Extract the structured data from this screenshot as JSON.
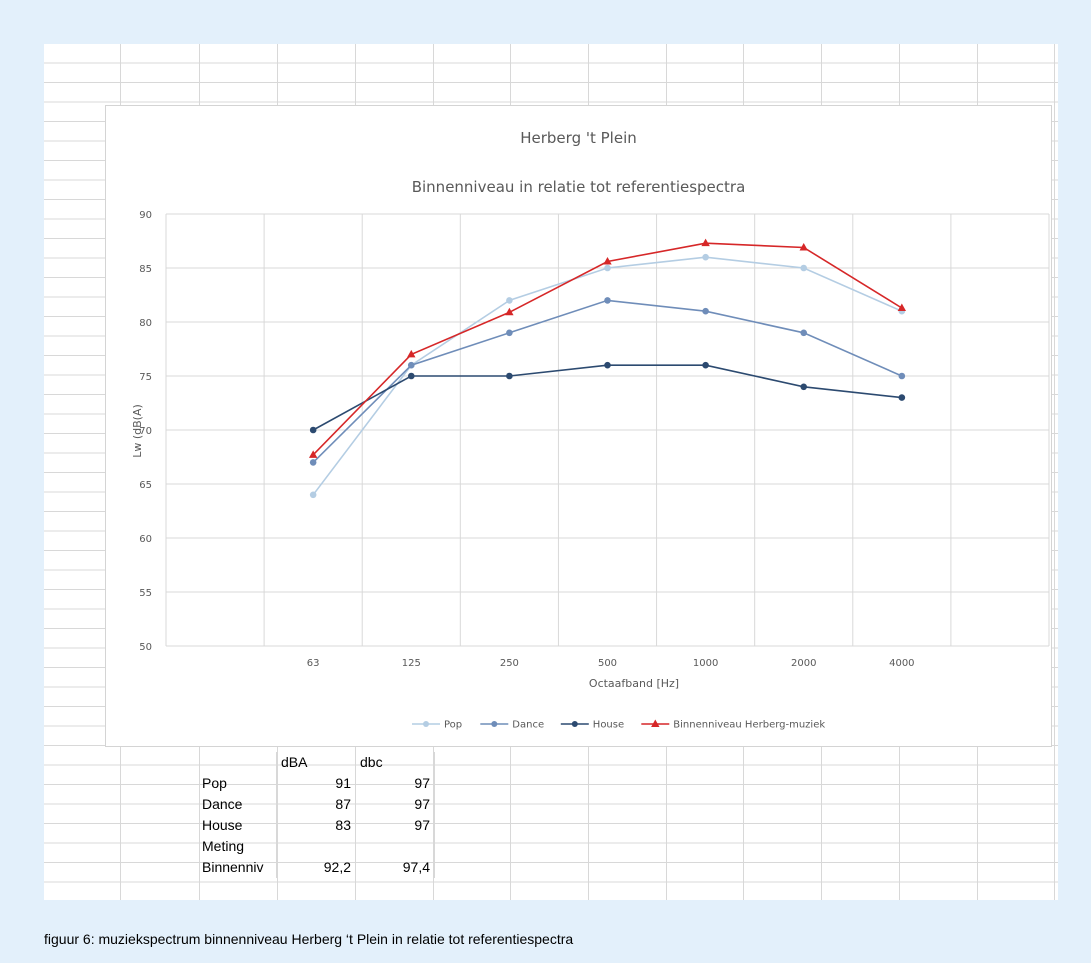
{
  "chart_data": {
    "type": "line",
    "title": "Herberg 't Plein",
    "subtitle": "Binnenniveau in relatie tot referentiespectra",
    "xlabel": "Octaafband [Hz]",
    "ylabel": "Lw (dB(A)",
    "categories": [
      "63",
      "125",
      "250",
      "500",
      "1000",
      "2000",
      "4000"
    ],
    "ylim": [
      50,
      90
    ],
    "yticks": [
      "50",
      "55",
      "60",
      "65",
      "70",
      "75",
      "80",
      "85",
      "90"
    ],
    "grid": true,
    "legend_position": "bottom",
    "series": [
      {
        "name": "Pop",
        "values": [
          64,
          76,
          82,
          85,
          86,
          85,
          81
        ],
        "color": "#b4cde3",
        "marker": "circle"
      },
      {
        "name": "Dance",
        "values": [
          67,
          76,
          79,
          82,
          81,
          79,
          75
        ],
        "color": "#6f8db9",
        "marker": "circle"
      },
      {
        "name": "House",
        "values": [
          70,
          75,
          75,
          76,
          76,
          74,
          73
        ],
        "color": "#2c4a70",
        "marker": "circle"
      },
      {
        "name": "Binnenniveau Herberg-muziek",
        "values": [
          67.7,
          77,
          80.9,
          85.6,
          87.3,
          86.9,
          81.3
        ],
        "color": "#d62728",
        "marker": "triangle"
      }
    ]
  },
  "table": {
    "headers": [
      "",
      "dBA",
      "dbc"
    ],
    "rows": [
      [
        "Pop",
        "91",
        "97"
      ],
      [
        "Dance",
        "87",
        "97"
      ],
      [
        "House",
        "83",
        "97"
      ],
      [
        "Meting",
        "",
        ""
      ],
      [
        "Binnenniv",
        "92,2",
        "97,4"
      ]
    ]
  },
  "caption": "figuur 6: muziekspectrum binnenniveau Herberg ‘t Plein in relatie tot referentiespectra"
}
